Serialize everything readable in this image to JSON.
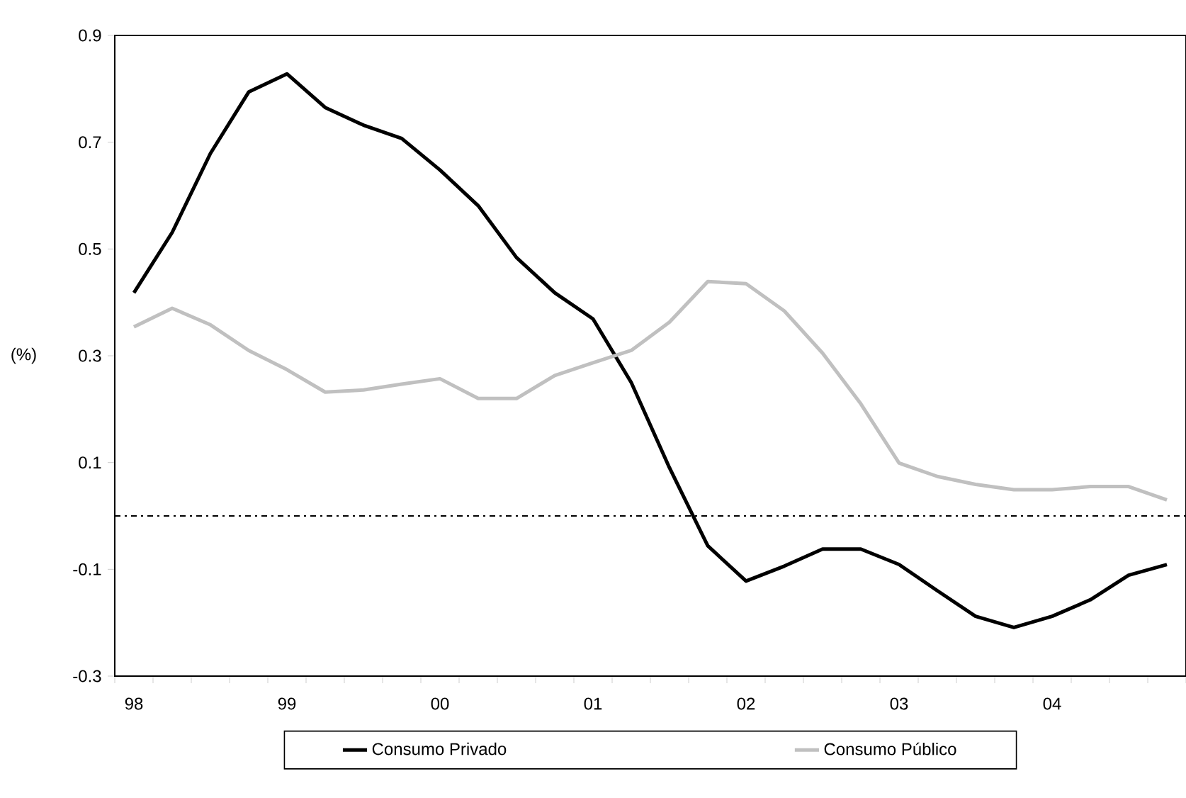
{
  "chart_data": {
    "type": "line",
    "ylabel": "(%)",
    "categories": [
      "98",
      null,
      null,
      null,
      "99",
      null,
      null,
      null,
      "00",
      null,
      null,
      null,
      "01",
      null,
      null,
      null,
      "02",
      null,
      null,
      null,
      "03",
      null,
      null,
      null,
      "04",
      null,
      null,
      null
    ],
    "series": [
      {
        "name": "Consumo Privado",
        "color": "#000000",
        "values": [
          0.418,
          0.531,
          0.679,
          0.794,
          0.828,
          0.765,
          0.732,
          0.707,
          0.648,
          0.581,
          0.484,
          0.418,
          0.369,
          0.25,
          0.09,
          -0.056,
          -0.122,
          -0.094,
          -0.062,
          -0.062,
          -0.091,
          -0.14,
          -0.188,
          -0.209,
          -0.188,
          -0.157,
          -0.111,
          -0.091
        ]
      },
      {
        "name": "Consumo Público",
        "color": "#c0c0c0",
        "values": [
          0.354,
          0.389,
          0.358,
          0.31,
          0.274,
          0.232,
          0.236,
          0.247,
          0.257,
          0.22,
          0.22,
          0.263,
          0.287,
          0.31,
          0.363,
          0.439,
          0.435,
          0.384,
          0.305,
          0.21,
          0.099,
          0.074,
          0.059,
          0.049,
          0.049,
          0.055,
          0.055,
          0.03
        ]
      }
    ],
    "ylim": [
      -0.3,
      0.9
    ],
    "yticks": [
      -0.3,
      -0.1,
      0.1,
      0.3,
      0.5,
      0.7,
      0.9
    ],
    "ref_lines": [
      {
        "axis": "y",
        "value": 0,
        "color": "#000000",
        "line_style": "dashed"
      }
    ],
    "legend": "bottom",
    "grid": false,
    "marker": "none",
    "line_style": "solid"
  }
}
